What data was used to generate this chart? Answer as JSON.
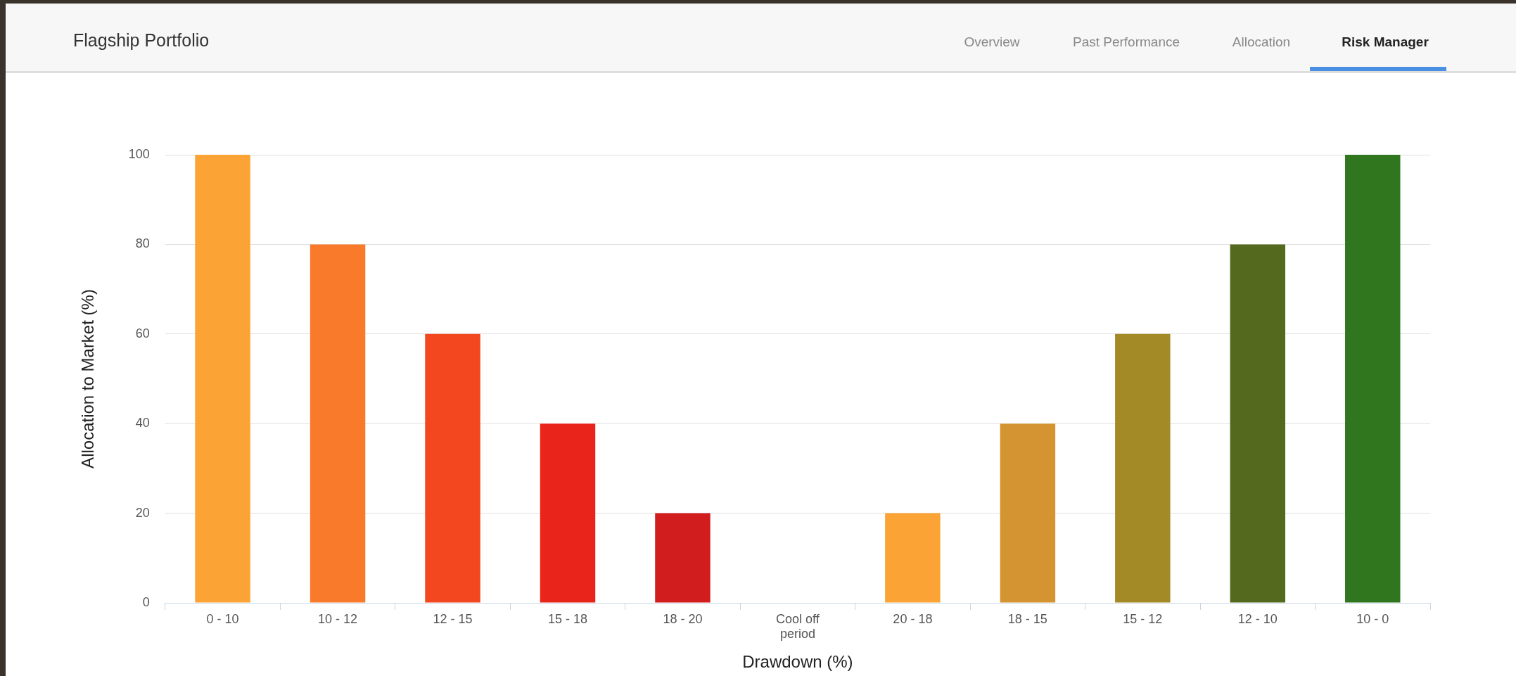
{
  "chart_data": {
    "type": "bar",
    "title": "Flagship Portfolio",
    "xlabel": "Drawdown (%)",
    "ylabel": "Allocation to Market (%)",
    "annotations": [
      "Overview",
      "Past Performance",
      "Allocation",
      "Risk Manager"
    ],
    "categories": [
      "0 - 10",
      "10 - 12",
      "12 - 15",
      "15 - 18",
      "18 - 20",
      "Cool off period",
      "20 - 18",
      "18 - 15",
      "15 - 12",
      "12 - 10",
      "10 - 0"
    ],
    "values": [
      100,
      80,
      60,
      40,
      20,
      0,
      20,
      40,
      60,
      80,
      100
    ],
    "colors": [
      "#fca335",
      "#fa7a2c",
      "#f2471f",
      "#e8241b",
      "#d11d1e",
      "#d11d1e",
      "#fca335",
      "#d39431",
      "#a38a27",
      "#55691e",
      "#2f761f"
    ],
    "ylim": [
      0,
      100
    ],
    "yticks": [
      0,
      20,
      40,
      60,
      80,
      100
    ],
    "grid": "y",
    "legend": false
  }
}
